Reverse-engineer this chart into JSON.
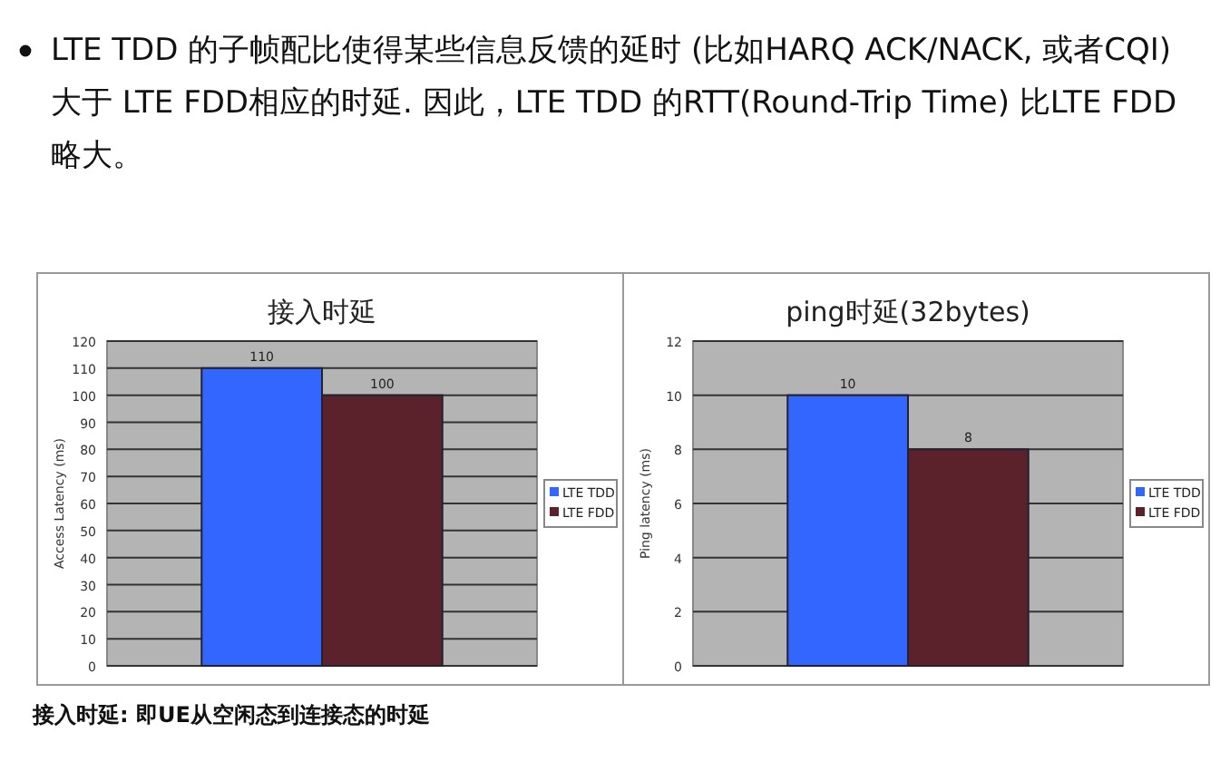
{
  "chart_data": [
    {
      "type": "bar",
      "title": "接入时延",
      "ylabel": "Access Latency (ms)",
      "categories": [
        null
      ],
      "series": [
        {
          "name": "LTE TDD",
          "color": "#3366ff",
          "values": [
            110
          ]
        },
        {
          "name": "LTE FDD",
          "color": "#5c222c",
          "values": [
            100
          ]
        }
      ],
      "ylim": [
        0,
        120
      ],
      "yticks": [
        0,
        10,
        20,
        30,
        40,
        50,
        60,
        70,
        80,
        90,
        100,
        110,
        120
      ],
      "grid": "y",
      "legend": "right",
      "data_labels": true,
      "annotations": [
        "LTE TDD 的子帧配比使得某些信息反馈的延时 (比如HARQ ACK/NACK, 或者CQI) 大于 LTE FDD相应的时延. 因此，LTE TDD 的RTT(Round-Trip Time) 比LTE FDD 略大。",
        "接入时延: 即UE从空闲态到连接态的时延"
      ]
    },
    {
      "type": "bar",
      "title": "ping时延(32bytes)",
      "ylabel": "Ping latency (ms)",
      "categories": [
        null
      ],
      "series": [
        {
          "name": "LTE TDD",
          "color": "#3366ff",
          "values": [
            10
          ]
        },
        {
          "name": "LTE FDD",
          "color": "#5c222c",
          "values": [
            8
          ]
        }
      ],
      "ylim": [
        0,
        12
      ],
      "yticks": [
        0,
        2,
        4,
        6,
        8,
        10,
        12
      ],
      "grid": "y",
      "legend": "right",
      "data_labels": true
    }
  ]
}
